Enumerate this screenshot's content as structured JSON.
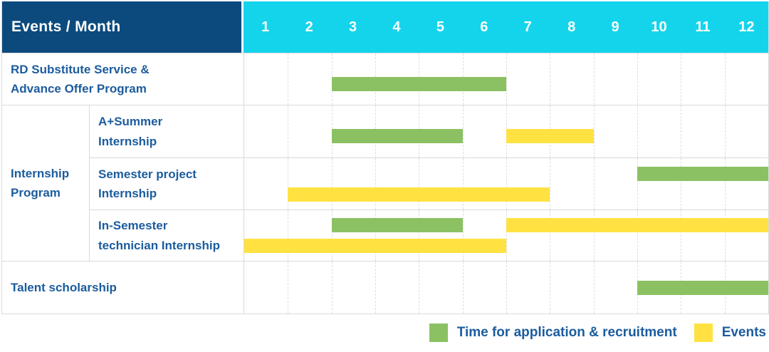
{
  "colors": {
    "navy": "#0C4A7D",
    "cyan": "#14D4EC",
    "green": "#8CC163",
    "yellow": "#FFE242",
    "text": "#1B5C9E"
  },
  "header": {
    "label": "Events / Month",
    "months": [
      "1",
      "2",
      "3",
      "4",
      "5",
      "6",
      "7",
      "8",
      "9",
      "10",
      "11",
      "12"
    ]
  },
  "labels": {
    "rd": [
      "RD Substitute Service &",
      "Advance Offer Program"
    ],
    "internship_group": [
      "Internship",
      "Program"
    ],
    "a_summer": [
      "A+Summer",
      "Internship"
    ],
    "semester_project": [
      "Semester project",
      "Internship"
    ],
    "in_semester": [
      "In-Semester",
      "technician Internship"
    ],
    "talent": "Talent scholarship"
  },
  "legend": {
    "application": "Time for application & recruitment",
    "events": "Events"
  },
  "chart_data": {
    "type": "gantt",
    "unit": "month",
    "x_categories": [
      "1",
      "2",
      "3",
      "4",
      "5",
      "6",
      "7",
      "8",
      "9",
      "10",
      "11",
      "12"
    ],
    "x_range": [
      1,
      12
    ],
    "bar_kinds": {
      "application": {
        "label": "Time for application & recruitment",
        "color": "#8CC163"
      },
      "event": {
        "label": "Events",
        "color": "#FFE242"
      }
    },
    "rows": [
      {
        "group": "",
        "label": "RD Substitute Service & Advance Offer Program",
        "lines": [
          [
            {
              "kind": "application",
              "start": 3,
              "end": 6
            }
          ]
        ]
      },
      {
        "group": "Internship Program",
        "label": "A+Summer Internship",
        "lines": [
          [
            {
              "kind": "application",
              "start": 3,
              "end": 5
            },
            {
              "kind": "event",
              "start": 7,
              "end": 8
            }
          ]
        ]
      },
      {
        "group": "Internship Program",
        "label": "Semester project Internship",
        "lines": [
          [
            {
              "kind": "application",
              "start": 10,
              "end": 12
            }
          ],
          [
            {
              "kind": "event",
              "start": 2,
              "end": 7
            }
          ]
        ]
      },
      {
        "group": "Internship Program",
        "label": "In-Semester technician Internship",
        "lines": [
          [
            {
              "kind": "application",
              "start": 3,
              "end": 5
            },
            {
              "kind": "event",
              "start": 7,
              "end": 12
            }
          ],
          [
            {
              "kind": "event",
              "start": 1,
              "end": 6
            }
          ]
        ]
      },
      {
        "group": "",
        "label": "Talent scholarship",
        "lines": [
          [
            {
              "kind": "application",
              "start": 10,
              "end": 12
            }
          ]
        ]
      }
    ],
    "legend_position": "bottom-right"
  }
}
